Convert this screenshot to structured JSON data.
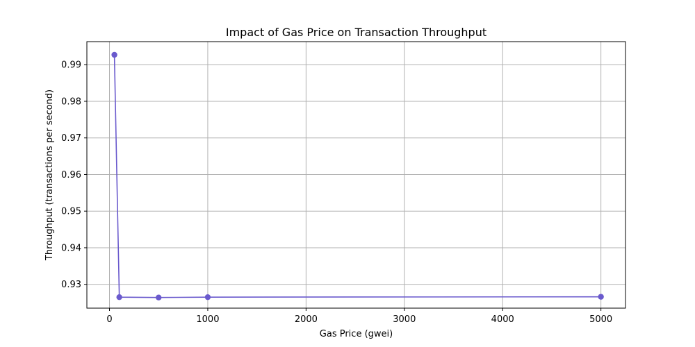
{
  "chart_data": {
    "type": "line",
    "title": "Impact of Gas Price on Transaction Throughput",
    "xlabel": "Gas Price (gwei)",
    "ylabel": "Throughput (transactions per second)",
    "xlim": [
      -230,
      5250
    ],
    "ylim": [
      0.9235,
      0.9963
    ],
    "xticks": [
      0,
      1000,
      2000,
      3000,
      4000,
      5000
    ],
    "yticks": [
      0.93,
      0.94,
      0.95,
      0.96,
      0.97,
      0.98,
      0.99
    ],
    "grid": true,
    "series": [
      {
        "color": "#6a5acd",
        "marker": "circle",
        "x": [
          50,
          100,
          500,
          1000,
          5000
        ],
        "y": [
          0.9927,
          0.9265,
          0.9264,
          0.9265,
          0.9266
        ]
      }
    ]
  }
}
